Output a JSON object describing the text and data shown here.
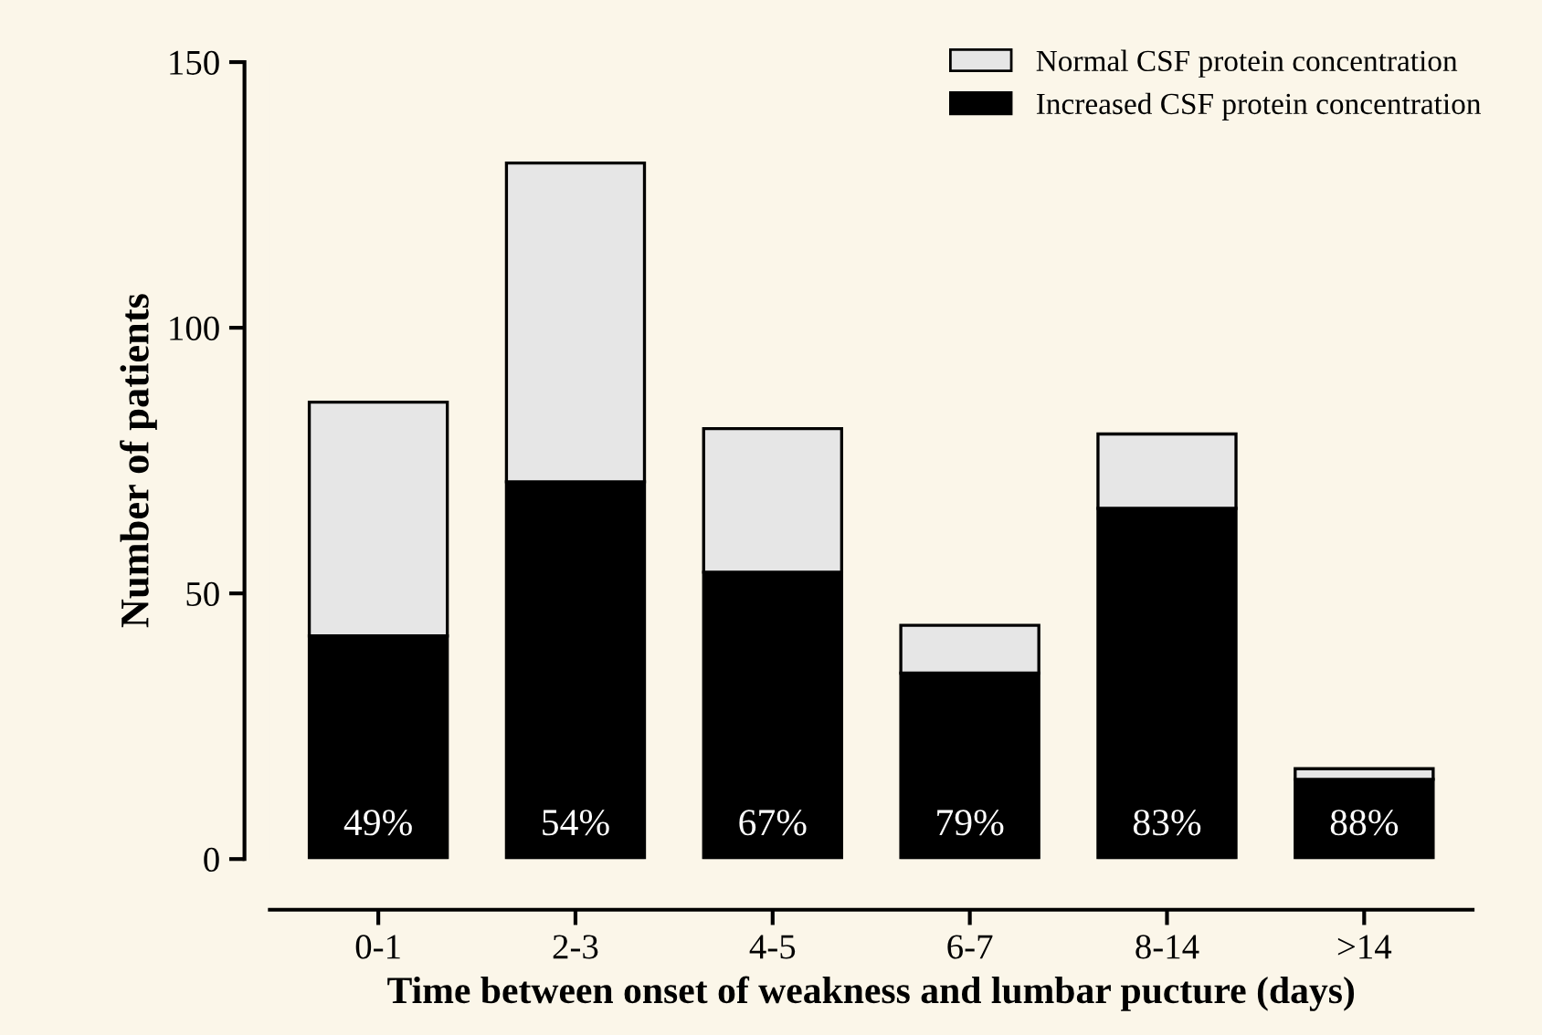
{
  "chart_data": {
    "type": "bar",
    "stacked": true,
    "xlabel": "Time between onset of weakness and lumbar pucture (days)",
    "ylabel": "Number of patients",
    "categories": [
      "0-1",
      "2-3",
      "4-5",
      "6-7",
      "8-14",
      ">14"
    ],
    "series": [
      {
        "name": "Increased CSF protein concentration",
        "color": "#000000",
        "values": [
          42,
          71,
          54,
          35,
          66,
          15
        ]
      },
      {
        "name": "Normal CSF protein concentration",
        "color": "#e6e6e6",
        "values": [
          44,
          60,
          27,
          9,
          14,
          2
        ]
      }
    ],
    "ylim": [
      0,
      150
    ],
    "yticks": [
      0,
      50,
      100,
      150
    ],
    "annotations": [
      {
        "text": "49%",
        "x": "0-1",
        "y": 0
      },
      {
        "text": "54%",
        "x": "2-3",
        "y": 0
      },
      {
        "text": "67%",
        "x": "4-5",
        "y": 0
      },
      {
        "text": "79%",
        "x": "6-7",
        "y": 0
      },
      {
        "text": "83%",
        "x": "8-14",
        "y": 0
      },
      {
        "text": "88%",
        "x": ">14",
        "y": 0
      }
    ],
    "grid": false,
    "legend": "top right"
  }
}
